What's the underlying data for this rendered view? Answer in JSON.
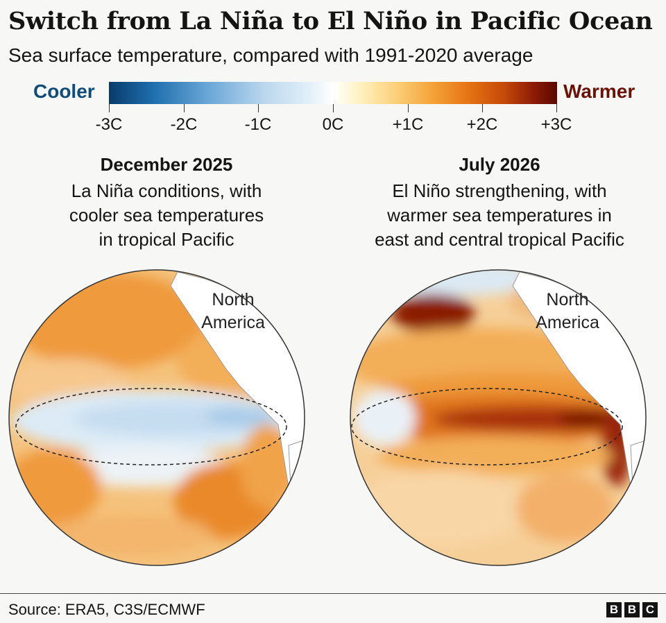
{
  "title": "Switch from La Niña to El Niño in Pacific Ocean",
  "subtitle": "Sea surface temperature, compared with 1991-2020 average",
  "legend": {
    "cooler": "Cooler",
    "warmer": "Warmer",
    "ticks": [
      "-3C",
      "-2C",
      "-1C",
      "0C",
      "+1C",
      "+2C",
      "+3C"
    ],
    "colors": {
      "coldest": "#083b6b",
      "neutral": "#ffffff",
      "warmest": "#5a0a02"
    }
  },
  "panels": [
    {
      "date": "December 2025",
      "caption": [
        "La Niña conditions, with",
        "cooler sea temperatures",
        "in tropical Pacific"
      ],
      "region_label": [
        "North",
        "America"
      ]
    },
    {
      "date": "July 2026",
      "caption": [
        "El Niño strengthening, with",
        "warmer sea temperatures in",
        "east and central tropical Pacific"
      ],
      "region_label": [
        "North",
        "America"
      ]
    }
  ],
  "footer": {
    "source": "Source: ERA5, C3S/ECMWF",
    "logo": [
      "B",
      "B",
      "C"
    ]
  }
}
